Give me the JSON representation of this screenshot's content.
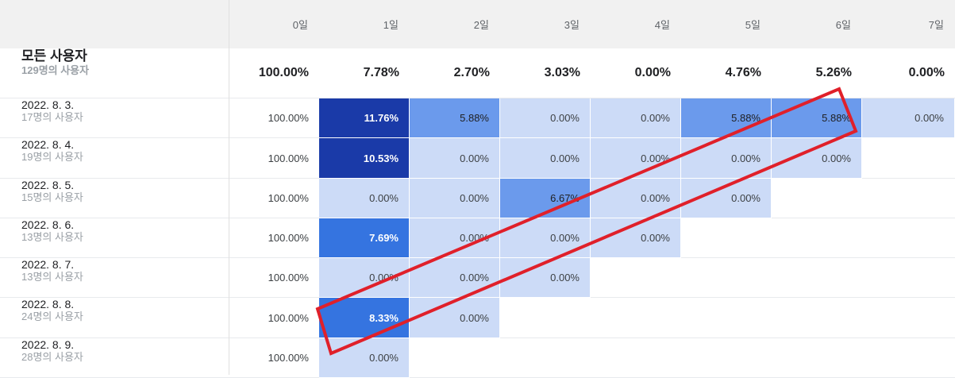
{
  "header": {
    "days": [
      "0일",
      "1일",
      "2일",
      "3일",
      "4일",
      "5일",
      "6일",
      "7일"
    ]
  },
  "total": {
    "label": "모든 사용자",
    "sub": "129명의 사용자",
    "values": [
      "100.00%",
      "7.78%",
      "2.70%",
      "3.03%",
      "0.00%",
      "4.76%",
      "5.26%",
      "0.00%"
    ]
  },
  "rows": [
    {
      "date": "2022. 8. 3.",
      "users": "17명의 사용자",
      "values": [
        "100.00%",
        "11.76%",
        "5.88%",
        "0.00%",
        "0.00%",
        "5.88%",
        "5.88%",
        "0.00%"
      ]
    },
    {
      "date": "2022. 8. 4.",
      "users": "19명의 사용자",
      "values": [
        "100.00%",
        "10.53%",
        "0.00%",
        "0.00%",
        "0.00%",
        "0.00%",
        "0.00%"
      ]
    },
    {
      "date": "2022. 8. 5.",
      "users": "15명의 사용자",
      "values": [
        "100.00%",
        "0.00%",
        "0.00%",
        "6.67%",
        "0.00%",
        "0.00%"
      ]
    },
    {
      "date": "2022. 8. 6.",
      "users": "13명의 사용자",
      "values": [
        "100.00%",
        "7.69%",
        "0.00%",
        "0.00%",
        "0.00%"
      ]
    },
    {
      "date": "2022. 8. 7.",
      "users": "13명의 사용자",
      "values": [
        "100.00%",
        "0.00%",
        "0.00%",
        "0.00%"
      ]
    },
    {
      "date": "2022. 8. 8.",
      "users": "24명의 사용자",
      "values": [
        "100.00%",
        "8.33%",
        "0.00%"
      ]
    },
    {
      "date": "2022. 8. 9.",
      "users": "28명의 사용자",
      "values": [
        "100.00%",
        "0.00%"
      ]
    }
  ],
  "colors": {
    "level_dark": "#1a3aa8",
    "level_strong": "#3574e0",
    "level_mid": "#6b9aec",
    "level_light": "#ccdbf7",
    "annotation": "#e0202a"
  },
  "annotation": "red-highlight-rectangle"
}
